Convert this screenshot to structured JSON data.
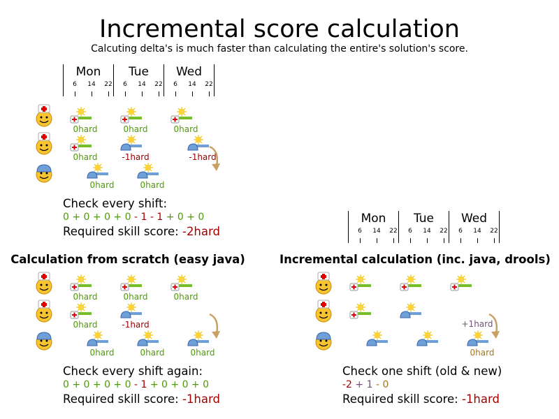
{
  "title": "Incremental score calculation",
  "subtitle": "Calcuting delta's is much faster than calculating the entire's solution's score.",
  "timeline": {
    "days": [
      "Mon",
      "Tue",
      "Wed"
    ],
    "hours": [
      "6",
      "14",
      "22"
    ]
  },
  "colors": {
    "ok": "#4e9a06",
    "bad": "#a40000",
    "plus": "#75507b",
    "neutral": "#a6761d",
    "arrow": "#c9a063"
  },
  "panels": [
    {
      "id": "top",
      "employees": [
        "nurse",
        "nurse",
        "worker"
      ],
      "shifts": [
        {
          "row": 0,
          "day": 0,
          "late": false,
          "req": "nurse",
          "label": "0hard",
          "tone": "ok"
        },
        {
          "row": 0,
          "day": 1,
          "late": false,
          "req": "nurse",
          "label": "0hard",
          "tone": "ok"
        },
        {
          "row": 0,
          "day": 2,
          "late": false,
          "req": "nurse",
          "label": "0hard",
          "tone": "ok"
        },
        {
          "row": 1,
          "day": 0,
          "late": false,
          "req": "nurse",
          "label": "0hard",
          "tone": "ok"
        },
        {
          "row": 1,
          "day": 1,
          "late": false,
          "req": "worker",
          "label": "-1hard",
          "tone": "bad"
        },
        {
          "row": 1,
          "day": 2,
          "late": true,
          "req": "worker",
          "label": "-1hard",
          "tone": "bad"
        },
        {
          "row": 2,
          "day": 0,
          "late": true,
          "req": "worker",
          "label": "0hard",
          "tone": "ok"
        },
        {
          "row": 2,
          "day": 1,
          "late": true,
          "req": "worker",
          "label": "0hard",
          "tone": "ok"
        }
      ],
      "arrow": true
    },
    {
      "id": "scratch",
      "employees": [
        "nurse",
        "nurse",
        "worker"
      ],
      "shifts": [
        {
          "row": 0,
          "day": 0,
          "late": false,
          "req": "nurse",
          "label": "0hard",
          "tone": "ok"
        },
        {
          "row": 0,
          "day": 1,
          "late": false,
          "req": "nurse",
          "label": "0hard",
          "tone": "ok"
        },
        {
          "row": 0,
          "day": 2,
          "late": false,
          "req": "nurse",
          "label": "0hard",
          "tone": "ok"
        },
        {
          "row": 1,
          "day": 0,
          "late": false,
          "req": "nurse",
          "label": "0hard",
          "tone": "ok"
        },
        {
          "row": 1,
          "day": 1,
          "late": false,
          "req": "worker",
          "label": "-1hard",
          "tone": "bad"
        },
        {
          "row": 2,
          "day": 0,
          "late": true,
          "req": "worker",
          "label": "0hard",
          "tone": "ok"
        },
        {
          "row": 2,
          "day": 1,
          "late": true,
          "req": "worker",
          "label": "0hard",
          "tone": "ok"
        },
        {
          "row": 2,
          "day": 2,
          "late": true,
          "req": "worker",
          "label": "0hard",
          "tone": "ok"
        }
      ],
      "arrow": true
    },
    {
      "id": "incremental",
      "employees": [
        "nurse",
        "nurse",
        "worker"
      ],
      "shifts": [
        {
          "row": 0,
          "day": 0,
          "late": false,
          "req": "nurse",
          "label": "",
          "tone": "ok"
        },
        {
          "row": 0,
          "day": 1,
          "late": false,
          "req": "nurse",
          "label": "",
          "tone": "ok"
        },
        {
          "row": 0,
          "day": 2,
          "late": false,
          "req": "nurse",
          "label": "",
          "tone": "ok"
        },
        {
          "row": 1,
          "day": 0,
          "late": false,
          "req": "nurse",
          "label": "",
          "tone": "ok"
        },
        {
          "row": 1,
          "day": 1,
          "late": false,
          "req": "worker",
          "label": "",
          "tone": "ok"
        },
        {
          "row": 2,
          "day": 0,
          "late": true,
          "req": "worker",
          "label": "",
          "tone": "ok"
        },
        {
          "row": 2,
          "day": 1,
          "late": true,
          "req": "worker",
          "label": "",
          "tone": "ok"
        },
        {
          "row": 2,
          "day": 2,
          "late": true,
          "req": "worker",
          "label": "0hard",
          "tone": "neutral"
        }
      ],
      "extra_label": {
        "text": "+1hard",
        "tone": "plus"
      },
      "arrow": true
    }
  ],
  "top_text": {
    "line1": "Check every shift:",
    "sum": [
      [
        "0 + 0 + 0 + 0 ",
        "ok"
      ],
      [
        "- 1 - 1",
        "bad"
      ],
      [
        " + 0 + 0",
        "ok"
      ]
    ],
    "score_label": "Required skill score: ",
    "score": "-2hard"
  },
  "left": {
    "heading": "Calculation from scratch (easy java)",
    "line1": "Check every shift again:",
    "sum": [
      [
        "0 + 0 + 0 + 0 ",
        "ok"
      ],
      [
        "- 1",
        "bad"
      ],
      [
        " + 0 + 0 + 0",
        "ok"
      ]
    ],
    "score_label": "Required skill score: ",
    "score": "-1hard"
  },
  "right": {
    "heading": "Incremental calculation (inc. java, drools)",
    "line1": "Check one shift (old & new)",
    "sum": [
      [
        "-2",
        "bad"
      ],
      [
        " + 1",
        "plus"
      ],
      [
        " - 0",
        "neutral"
      ]
    ],
    "score_label": "Required skill score: ",
    "score": "-1hard"
  }
}
